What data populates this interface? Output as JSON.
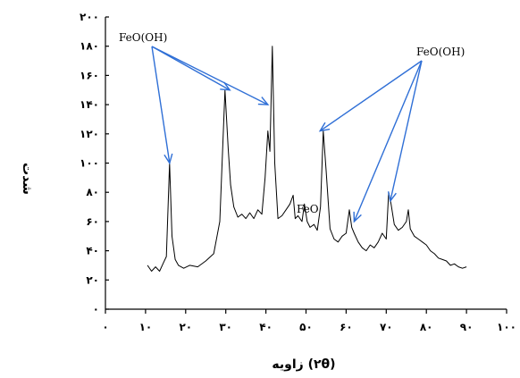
{
  "chart_data": {
    "type": "line",
    "xlabel": "زاویه (۲θ)",
    "ylabel": "شدت",
    "xlim": [
      0,
      100
    ],
    "ylim": [
      0,
      200
    ],
    "x_ticks": [
      0,
      10,
      20,
      30,
      40,
      50,
      60,
      70,
      80,
      90,
      100
    ],
    "x_tick_labels": [
      "۰",
      "۱۰",
      "۲۰",
      "۳۰",
      "۴۰",
      "۵۰",
      "۶۰",
      "۷۰",
      "۸۰",
      "۹۰",
      "۱۰۰"
    ],
    "y_ticks": [
      0,
      20,
      40,
      60,
      80,
      100,
      120,
      140,
      160,
      180,
      200
    ],
    "y_tick_labels": [
      "۰",
      "۲۰",
      "۴۰",
      "۶۰",
      "۸۰",
      "۱۰۰",
      "۱۲۰",
      "۱۴۰",
      "۱۶۰",
      "۱۸۰",
      "۲۰۰"
    ],
    "grid": false,
    "series": [
      {
        "x": [
          10.5,
          11.5,
          12.5,
          13.5,
          14.5,
          15.2,
          16.0,
          16.6,
          17.4,
          18.2,
          19.5,
          21,
          23,
          25,
          27,
          28.5,
          29.8,
          30.6,
          31.2,
          32.0,
          33,
          34,
          35,
          36,
          37,
          38,
          39,
          39.8,
          40.5,
          41,
          41.6,
          42.2,
          43,
          44,
          45,
          46,
          46.8,
          47.3,
          48,
          49,
          49.6,
          50.3,
          51,
          52,
          52.8,
          53.6,
          54.3,
          55,
          56,
          57,
          58,
          59,
          60,
          60.8,
          61.4,
          62,
          63,
          64,
          65,
          66,
          67,
          68,
          69,
          70,
          70.6,
          71.2,
          72,
          73,
          74,
          75,
          75.5,
          76,
          77,
          78,
          79,
          80,
          81,
          82,
          83,
          84,
          85,
          86,
          87,
          88,
          89,
          90
        ],
        "y": [
          30,
          26,
          29,
          26,
          32,
          36,
          100,
          50,
          34,
          30,
          28,
          30,
          29,
          33,
          38,
          60,
          150,
          110,
          85,
          70,
          63,
          65,
          62,
          66,
          62,
          68,
          65,
          90,
          122,
          108,
          180,
          100,
          62,
          64,
          68,
          72,
          78,
          62,
          64,
          60,
          72,
          60,
          56,
          58,
          54,
          70,
          122,
          95,
          55,
          48,
          46,
          50,
          52,
          68,
          56,
          52,
          46,
          42,
          40,
          44,
          42,
          46,
          52,
          48,
          80,
          72,
          58,
          54,
          56,
          60,
          68,
          55,
          50,
          48,
          46,
          44,
          40,
          38,
          35,
          34,
          33,
          30,
          31,
          29,
          28,
          29
        ]
      }
    ],
    "annotations": [
      {
        "text": "FeO(OH)",
        "arrow_targets": [
          [
            16.0,
            100
          ],
          [
            31.0,
            150
          ],
          [
            40.5,
            140
          ]
        ]
      },
      {
        "text": "FeO(OH)",
        "arrow_targets": [
          [
            53.5,
            122
          ],
          [
            62.0,
            60
          ],
          [
            71.0,
            74
          ]
        ]
      },
      {
        "text": "FeO"
      }
    ],
    "colors": {
      "line": "#000000",
      "arrow": "#2f6fd6"
    }
  }
}
